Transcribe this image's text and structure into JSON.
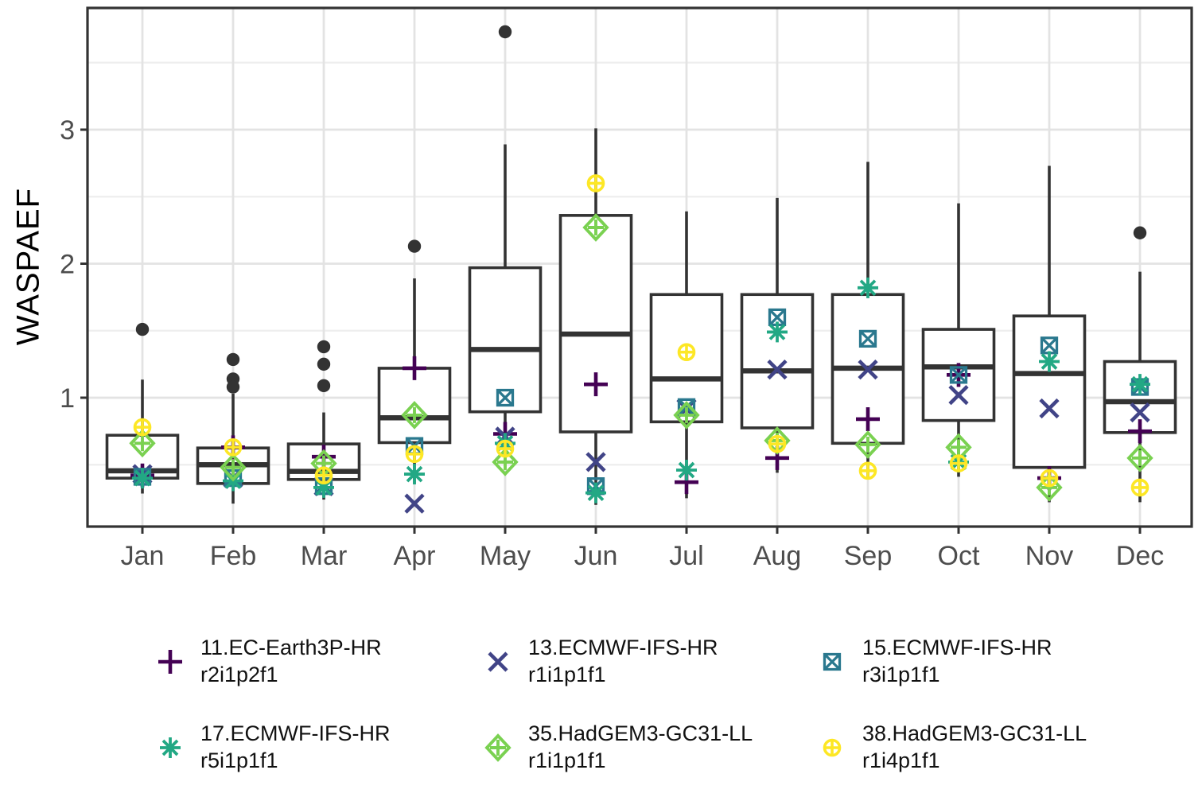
{
  "chart_data": {
    "type": "boxplot_with_points",
    "title": "",
    "xlabel": "",
    "ylabel": "WASPAEF",
    "y_ticks": [
      1,
      2,
      3
    ],
    "y_minor_gridlines": [
      0.5,
      1.5,
      2.5,
      3.5
    ],
    "ylim": [
      0.04,
      3.9
    ],
    "grid": "on",
    "legend_position": "bottom",
    "categories": [
      "Jan",
      "Feb",
      "Mar",
      "Apr",
      "May",
      "Jun",
      "Jul",
      "Aug",
      "Sep",
      "Oct",
      "Nov",
      "Dec"
    ],
    "boxes": [
      {
        "month": "Jan",
        "q1": 0.4,
        "median": 0.455,
        "q3": 0.72,
        "whisker_low": 0.285,
        "whisker_high": 1.135,
        "outliers": [
          1.51
        ]
      },
      {
        "month": "Feb",
        "q1": 0.36,
        "median": 0.5,
        "q3": 0.625,
        "whisker_low": 0.21,
        "whisker_high": 1.03,
        "outliers": [
          1.285,
          1.14,
          1.08
        ]
      },
      {
        "month": "Mar",
        "q1": 0.39,
        "median": 0.45,
        "q3": 0.655,
        "whisker_low": 0.24,
        "whisker_high": 0.89,
        "outliers": [
          1.38,
          1.25,
          1.09
        ]
      },
      {
        "month": "Apr",
        "q1": 0.665,
        "median": 0.85,
        "q3": 1.22,
        "whisker_low": 0.36,
        "whisker_high": 1.89,
        "outliers": [
          2.13
        ]
      },
      {
        "month": "May",
        "q1": 0.895,
        "median": 1.36,
        "q3": 1.97,
        "whisker_low": 0.78,
        "whisker_high": 2.89,
        "outliers": [
          3.73
        ]
      },
      {
        "month": "Jun",
        "q1": 0.745,
        "median": 1.475,
        "q3": 2.36,
        "whisker_low": 0.2,
        "whisker_high": 3.01,
        "outliers": []
      },
      {
        "month": "Jul",
        "q1": 0.82,
        "median": 1.14,
        "q3": 1.77,
        "whisker_low": 0.25,
        "whisker_high": 2.39,
        "outliers": []
      },
      {
        "month": "Aug",
        "q1": 0.775,
        "median": 1.2,
        "q3": 1.77,
        "whisker_low": 0.44,
        "whisker_high": 2.49,
        "outliers": []
      },
      {
        "month": "Sep",
        "q1": 0.66,
        "median": 1.22,
        "q3": 1.77,
        "whisker_low": 0.39,
        "whisker_high": 2.76,
        "outliers": []
      },
      {
        "month": "Oct",
        "q1": 0.83,
        "median": 1.23,
        "q3": 1.51,
        "whisker_low": 0.41,
        "whisker_high": 2.45,
        "outliers": []
      },
      {
        "month": "Nov",
        "q1": 0.48,
        "median": 1.18,
        "q3": 1.61,
        "whisker_low": 0.22,
        "whisker_high": 2.73,
        "outliers": []
      },
      {
        "month": "Dec",
        "q1": 0.74,
        "median": 0.97,
        "q3": 1.27,
        "whisker_low": 0.22,
        "whisker_high": 1.94,
        "outliers": [
          2.23
        ]
      }
    ],
    "series": [
      {
        "id": "11",
        "label": "11.EC-Earth3P-HR",
        "run": "r2i1p2f1",
        "marker": "plus",
        "color": "#440154",
        "values": [
          0.42,
          0.63,
          0.56,
          1.22,
          0.73,
          1.1,
          0.37,
          0.55,
          0.84,
          1.17,
          0.4,
          0.75
        ]
      },
      {
        "id": "13",
        "label": "13.ECMWF-IFS-HR",
        "run": "r1i1p1f1",
        "marker": "x",
        "color": "#414487",
        "values": [
          0.43,
          0.4,
          0.34,
          0.21,
          0.71,
          0.52,
          0.92,
          1.21,
          1.21,
          1.02,
          0.92,
          0.89
        ]
      },
      {
        "id": "15",
        "label": "15.ECMWF-IFS-HR",
        "run": "r3i1p1f1",
        "marker": "square-x",
        "color": "#2a788e",
        "values": [
          0.41,
          0.4,
          0.34,
          0.64,
          1.0,
          0.34,
          0.93,
          1.6,
          1.44,
          1.17,
          1.39,
          1.08
        ]
      },
      {
        "id": "17",
        "label": "17.ECMWF-IFS-HR",
        "run": "r5i1p1f1",
        "marker": "asterisk",
        "color": "#22a884",
        "values": [
          0.4,
          0.38,
          0.33,
          0.43,
          0.66,
          0.29,
          0.46,
          1.49,
          1.82,
          0.52,
          1.27,
          1.1
        ]
      },
      {
        "id": "35",
        "label": "35.HadGEM3-GC31-LL",
        "run": "r1i1p1f1",
        "marker": "diamond-plus",
        "color": "#7ad151",
        "values": [
          0.66,
          0.48,
          0.51,
          0.87,
          0.52,
          2.27,
          0.87,
          0.68,
          0.65,
          0.63,
          0.33,
          0.55
        ]
      },
      {
        "id": "38",
        "label": "38.HadGEM3-GC31-LL",
        "run": "r1i4p1f1",
        "marker": "circle-plus",
        "color": "#fde725",
        "values": [
          0.78,
          0.63,
          0.42,
          0.58,
          0.62,
          2.6,
          1.34,
          0.655,
          0.455,
          0.51,
          0.4,
          0.33
        ]
      }
    ],
    "style": {
      "box_color": "#333333",
      "outlier_color": "#333333",
      "grid_major": "#e3e3e3",
      "grid_minor": "#eeeeee",
      "axis_text_color": "#4d4d4d",
      "panel_border_color": "#333333",
      "panel_background": "#ffffff"
    }
  }
}
